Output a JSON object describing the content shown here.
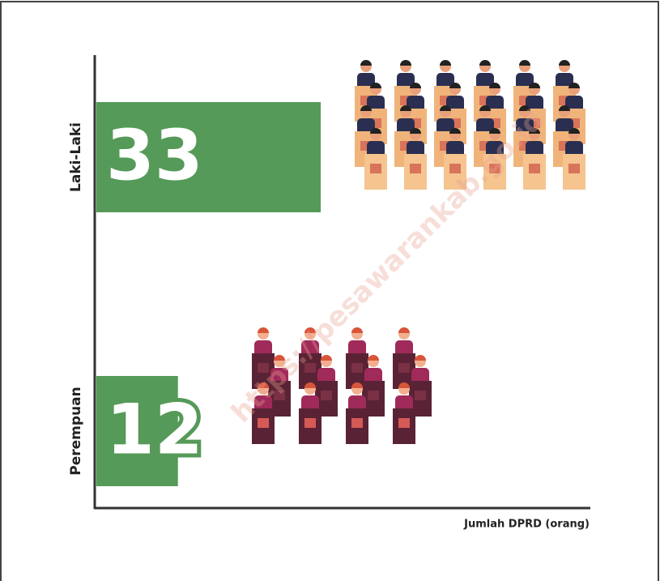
{
  "chart_data": {
    "type": "bar",
    "orientation": "horizontal",
    "categories": [
      "Laki-Laki",
      "Perempuan"
    ],
    "values": [
      33,
      12
    ],
    "color": "#559a58",
    "x_label": "Jumlah DPRD (orang)"
  },
  "watermark": "https://pesawarankab.go.id"
}
